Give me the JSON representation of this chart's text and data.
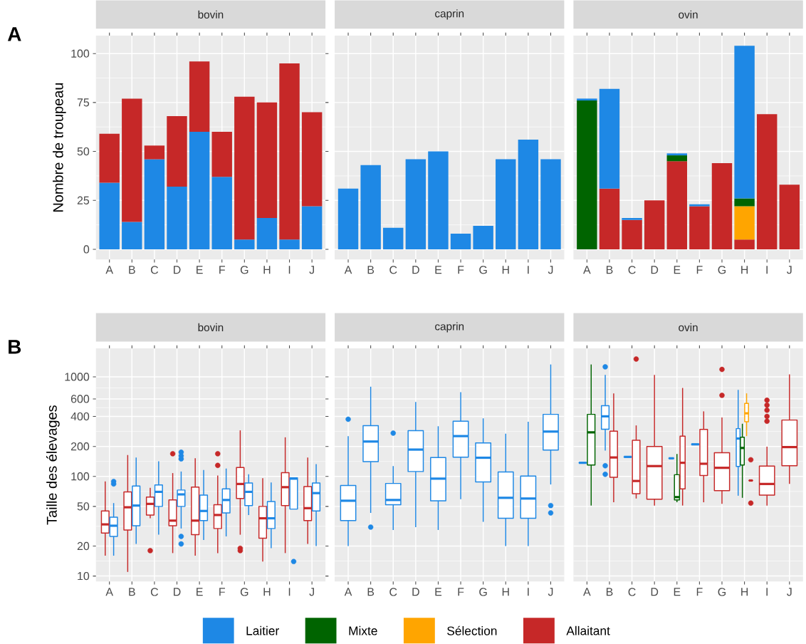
{
  "chart_data": [
    {
      "type": "bar",
      "title": "bovin",
      "ylabel": "Nombre de troupeau",
      "annotations": [
        "A"
      ],
      "categories": [
        "A",
        "B",
        "C",
        "D",
        "E",
        "F",
        "G",
        "H",
        "I",
        "J"
      ],
      "stacked": true,
      "ylim": [
        -5.2,
        109.2
      ],
      "yticks": [
        0,
        25,
        50,
        75,
        100
      ],
      "grid": true,
      "series": [
        {
          "color": "#1e88e5",
          "values": [
            34,
            14,
            46,
            32,
            60,
            37,
            5,
            16,
            5,
            22
          ]
        },
        {
          "color": "#c62828",
          "values": [
            25,
            63,
            7,
            36,
            36,
            23,
            73,
            59,
            90,
            48
          ]
        }
      ]
    },
    {
      "type": "bar",
      "title": "caprin",
      "categories": [
        "A",
        "B",
        "C",
        "D",
        "E",
        "F",
        "G",
        "H",
        "I",
        "J"
      ],
      "stacked": true,
      "ylim": [
        -5.2,
        109.2
      ],
      "yticks": [
        0,
        25,
        50,
        75,
        100
      ],
      "grid": true,
      "tick_labels": "x",
      "series": [
        {
          "color": "#1e88e5",
          "values": [
            31,
            43,
            11,
            46,
            50,
            8,
            12,
            46,
            56,
            46
          ]
        }
      ]
    },
    {
      "type": "bar",
      "title": "ovin",
      "categories": [
        "A",
        "B",
        "C",
        "D",
        "E",
        "F",
        "G",
        "H",
        "I",
        "J"
      ],
      "stacked": true,
      "ylim": [
        -5.2,
        109.2
      ],
      "yticks": [
        0,
        25,
        50,
        75,
        100
      ],
      "grid": true,
      "tick_labels": "x",
      "legend": "bottom",
      "series": [
        {
          "name": "Allaitant",
          "color": "#c62828",
          "values": [
            null,
            31,
            15,
            25,
            45,
            22,
            44,
            5,
            69,
            33
          ]
        },
        {
          "name": "Sélection",
          "color": "#ffa500",
          "values": [
            null,
            null,
            null,
            null,
            null,
            null,
            null,
            17,
            null,
            null
          ]
        },
        {
          "name": "Mixte",
          "color": "#006400",
          "values": [
            76,
            null,
            null,
            null,
            3,
            null,
            null,
            4,
            null,
            null
          ]
        },
        {
          "name": "Laitier",
          "color": "#1e88e5",
          "values": [
            1,
            51,
            1,
            null,
            1,
            1,
            null,
            78,
            null,
            null
          ]
        }
      ]
    },
    {
      "type": "box",
      "title": "bovin",
      "ylabel": "Taille des élevages",
      "annotations": [
        "B"
      ],
      "categories": [
        "A",
        "B",
        "C",
        "D",
        "E",
        "F",
        "G",
        "H",
        "I",
        "J"
      ],
      "log": true,
      "ylim": [
        8.8,
        1930
      ],
      "yticks": [
        10,
        20,
        50,
        100,
        200,
        400,
        600,
        1000
      ],
      "grid": true,
      "series": [
        {
          "color": "#c62828",
          "boxes": [
            {
              "low": 16,
              "q1": 27,
              "median": 33,
              "q3": 45,
              "high": 89
            },
            {
              "low": 11,
              "q1": 29,
              "median": 49,
              "q3": 70,
              "high": 164
            },
            {
              "low": 38,
              "q1": 41,
              "median": 53,
              "q3": 62,
              "high": 77,
              "outliers": [
                18
              ]
            },
            {
              "low": 17,
              "q1": 32,
              "median": 36,
              "q3": 58,
              "high": 108,
              "outliers": [
                169
              ]
            },
            {
              "low": 16,
              "q1": 26,
              "median": 36,
              "q3": 78,
              "high": 152
            },
            {
              "low": 17,
              "q1": 30,
              "median": 41,
              "q3": 52,
              "high": 102,
              "outliers": [
                169,
                129
              ]
            },
            {
              "low": 26,
              "q1": 60,
              "median": 84,
              "q3": 123,
              "high": 290,
              "outliers": [
                19,
                18
              ]
            },
            {
              "low": 14,
              "q1": 24,
              "median": 38,
              "q3": 50,
              "high": 96
            },
            {
              "low": 17,
              "q1": 51,
              "median": 78,
              "q3": 109,
              "high": 247
            },
            {
              "low": 21,
              "q1": 36,
              "median": 48,
              "q3": 79,
              "high": 155
            }
          ]
        },
        {
          "color": "#1e88e5",
          "boxes": [
            {
              "low": 16,
              "q1": 25,
              "median": 32,
              "q3": 39,
              "high": 54,
              "outliers": [
                89,
                84
              ]
            },
            {
              "low": 21,
              "q1": 32,
              "median": 51,
              "q3": 80,
              "high": 155
            },
            {
              "low": 26,
              "q1": 50,
              "median": 70,
              "q3": 82,
              "high": 142
            },
            {
              "low": 30,
              "q1": 50,
              "median": 66,
              "q3": 73,
              "high": 112,
              "outliers": [
                175,
                161,
                150,
                25,
                21
              ]
            },
            {
              "low": 23,
              "q1": 36,
              "median": 45,
              "q3": 65,
              "high": 116
            },
            {
              "low": 25,
              "q1": 43,
              "median": 58,
              "q3": 75,
              "high": 120
            },
            {
              "low": 41,
              "q1": 51,
              "median": 70,
              "q3": 86,
              "high": 105
            },
            {
              "low": 19,
              "q1": 30,
              "median": 38,
              "q3": 56,
              "high": 87
            },
            {
              "low": 47,
              "q1": 47,
              "median": 95,
              "q3": 97,
              "high": 98,
              "outliers": [
                14
              ]
            },
            {
              "low": 20,
              "q1": 45,
              "median": 68,
              "q3": 86,
              "high": 133
            }
          ]
        }
      ]
    },
    {
      "type": "box",
      "title": "caprin",
      "categories": [
        "A",
        "B",
        "C",
        "D",
        "E",
        "F",
        "G",
        "H",
        "I",
        "J"
      ],
      "log": true,
      "ylim": [
        8.8,
        1930
      ],
      "yticks": [
        10,
        20,
        50,
        100,
        200,
        400,
        600,
        1000
      ],
      "grid": true,
      "tick_labels": "x",
      "series": [
        {
          "color": "#1e88e5",
          "boxes": [
            {
              "low": 20,
              "q1": 36,
              "median": 57,
              "q3": 81,
              "high": 254,
              "outliers": [
                375
              ]
            },
            {
              "low": 43,
              "q1": 141,
              "median": 224,
              "q3": 323,
              "high": 796,
              "outliers": [
                31
              ]
            },
            {
              "low": 29,
              "q1": 52,
              "median": 58,
              "q3": 85,
              "high": 127,
              "outliers": [
                272
              ]
            },
            {
              "low": 31,
              "q1": 112,
              "median": 186,
              "q3": 288,
              "high": 559
            },
            {
              "low": 29,
              "q1": 57,
              "median": 95,
              "q3": 155,
              "high": 319
            },
            {
              "low": 59,
              "q1": 156,
              "median": 254,
              "q3": 358,
              "high": 702
            },
            {
              "low": 35,
              "q1": 88,
              "median": 154,
              "q3": 217,
              "high": 383
            },
            {
              "low": 20,
              "q1": 38,
              "median": 61,
              "q3": 111,
              "high": 269
            },
            {
              "low": 20,
              "q1": 38,
              "median": 60,
              "q3": 101,
              "high": 354
            },
            {
              "low": 83,
              "q1": 184,
              "median": 282,
              "q3": 420,
              "high": 1330,
              "outliers": [
                51,
                43
              ]
            }
          ]
        }
      ]
    },
    {
      "type": "box",
      "title": "ovin",
      "categories": [
        "A",
        "B",
        "C",
        "D",
        "E",
        "F",
        "G",
        "H",
        "I",
        "J"
      ],
      "log": true,
      "ylim": [
        8.8,
        1930
      ],
      "yticks": [
        10,
        20,
        50,
        100,
        200,
        400,
        600,
        1000
      ],
      "grid": true,
      "tick_labels": "x",
      "series": [
        {
          "color": "#1e88e5",
          "boxes": [
            {
              "low": 137,
              "q1": 137,
              "median": 137,
              "q3": 137,
              "high": 137
            },
            {
              "low": 182,
              "q1": 298,
              "median": 401,
              "q3": 513,
              "high": 1047,
              "outliers": [
                1260,
                128,
                105
              ]
            },
            {
              "low": 157,
              "q1": 157,
              "median": 157,
              "q3": 157,
              "high": 157
            },
            null,
            {
              "low": 152,
              "q1": 152,
              "median": 152,
              "q3": 152,
              "high": 152
            },
            {
              "low": 210,
              "q1": 210,
              "median": 210,
              "q3": 210,
              "high": 210
            },
            null,
            {
              "low": 64,
              "q1": 126,
              "median": 240,
              "q3": 302,
              "high": 739
            },
            null,
            null
          ]
        },
        {
          "color": "#006400",
          "boxes": [
            {
              "low": 51,
              "q1": 130,
              "median": 277,
              "q3": 420,
              "high": 1330
            },
            null,
            null,
            null,
            {
              "low": 55,
              "q1": 58,
              "median": 62,
              "q3": 104,
              "high": 168
            },
            null,
            null,
            {
              "low": 61,
              "q1": 130,
              "median": 193,
              "q3": 247,
              "high": 338
            },
            null,
            null
          ]
        },
        {
          "color": "#ffa500",
          "boxes": [
            null,
            null,
            null,
            null,
            null,
            null,
            null,
            {
              "low": 254,
              "q1": 354,
              "median": 430,
              "q3": 540,
              "high": 682
            },
            null,
            null
          ]
        },
        {
          "color": "#c62828",
          "boxes": [
            null,
            {
              "low": 55,
              "q1": 98,
              "median": 155,
              "q3": 285,
              "high": 682
            },
            {
              "low": 60,
              "q1": 67,
              "median": 90,
              "q3": 231,
              "high": 325,
              "outliers": [
                1508
              ]
            },
            {
              "low": 51,
              "q1": 59,
              "median": 127,
              "q3": 200,
              "high": 1047
            },
            {
              "low": 51,
              "q1": 75,
              "median": 137,
              "q3": 254,
              "high": 773
            },
            {
              "low": 55,
              "q1": 102,
              "median": 134,
              "q3": 297,
              "high": 450
            },
            {
              "low": 53,
              "q1": 72,
              "median": 122,
              "q3": 173,
              "high": 390,
              "outliers": [
                1186,
                652
              ]
            },
            {
              "low": 91,
              "q1": 91,
              "median": 91,
              "q3": 91,
              "high": 91,
              "outliers": [
                147,
                54
              ]
            },
            {
              "low": 51,
              "q1": 65,
              "median": 84,
              "q3": 127,
              "high": 199,
              "outliers": [
                582,
                519,
                462,
                401,
                358
              ]
            },
            {
              "low": 84,
              "q1": 128,
              "median": 197,
              "q3": 368,
              "high": 1059
            }
          ]
        }
      ]
    }
  ]
}
